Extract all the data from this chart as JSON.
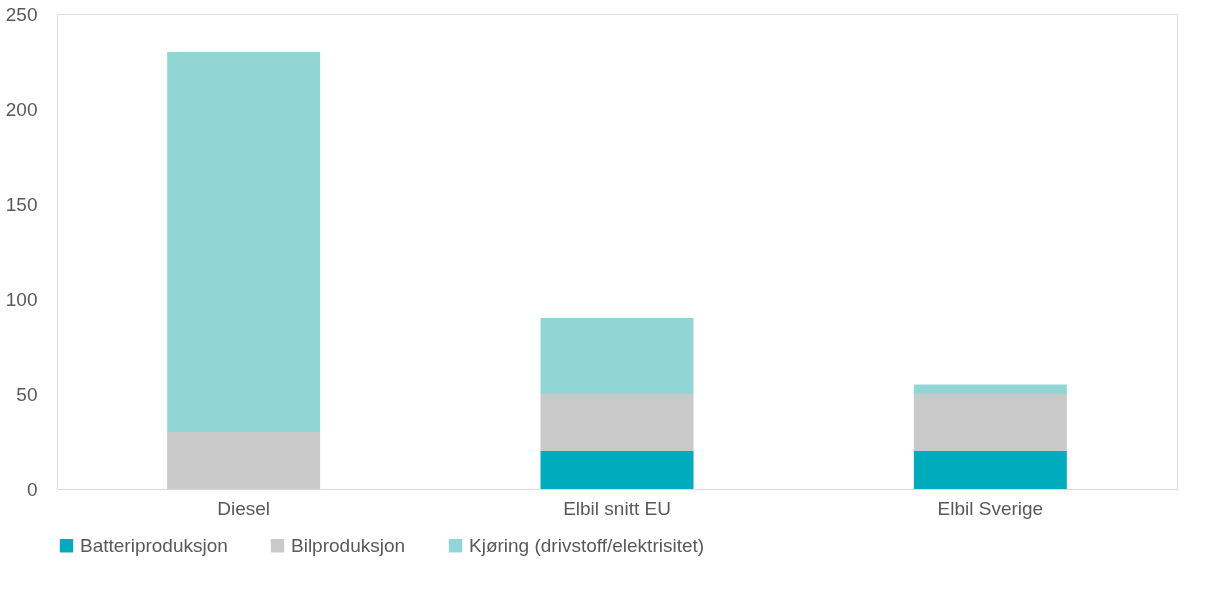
{
  "chart_data": {
    "type": "bar",
    "stacked": true,
    "categories": [
      "Diesel",
      "Elbil snitt EU",
      "Elbil Sverige"
    ],
    "series": [
      {
        "name": "Batteriproduksjon",
        "color": "#00abbd",
        "values": [
          0,
          20,
          20
        ]
      },
      {
        "name": "Bilproduksjon",
        "color": "#c9c9c9",
        "values": [
          30,
          30,
          30
        ]
      },
      {
        "name": "Kjøring (drivstoff/elektrisitet)",
        "color": "#91d5d5",
        "values": [
          200,
          40,
          5
        ]
      }
    ],
    "ylim": [
      0,
      250
    ],
    "yticks": [
      0,
      50,
      100,
      150,
      200,
      250
    ],
    "grid": false,
    "legend": "bottom"
  }
}
